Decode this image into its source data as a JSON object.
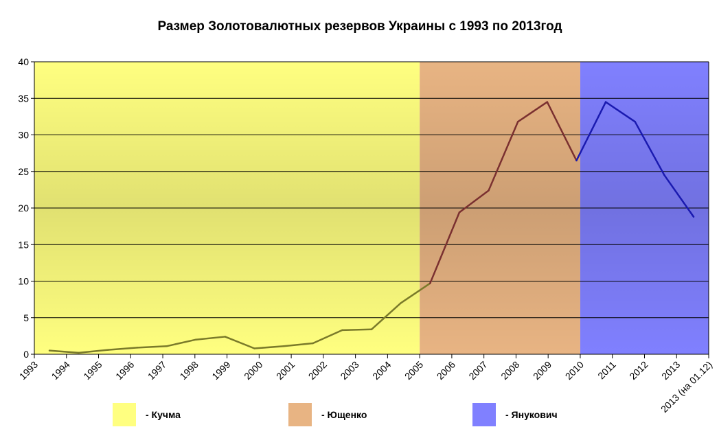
{
  "chart_data": {
    "type": "line",
    "title": "Размер Золотовалютных резервов Украины с 1993 по 2013год",
    "xlabel": "",
    "ylabel": "",
    "ylim": [
      0,
      40
    ],
    "yticks": [
      0,
      5,
      10,
      15,
      20,
      25,
      30,
      35,
      40
    ],
    "grid": true,
    "x_tick_labels": [
      "1993",
      "1994",
      "1995",
      "1996",
      "1997",
      "1998",
      "1999",
      "2000",
      "2001",
      "2002",
      "2003",
      "2004",
      "2005",
      "2006",
      "2007",
      "2008",
      "2009",
      "2010",
      "2011",
      "2012",
      "2013",
      "2013 (на 01.12)"
    ],
    "series": [
      {
        "name": "",
        "x": [
          "1993",
          "1994",
          "1995",
          "1996",
          "1997",
          "1998",
          "1999",
          "2000",
          "2001",
          "2002",
          "2003",
          "2004",
          "2005",
          "2006",
          "2007",
          "2008",
          "2009",
          "2010",
          "2011",
          "2012",
          "2013",
          "2013 (на 01.12)"
        ],
        "values": [
          0.5,
          0.2,
          0.6,
          0.9,
          1.1,
          2.0,
          2.4,
          0.8,
          1.1,
          1.5,
          3.3,
          3.4,
          7.0,
          9.7,
          19.4,
          22.4,
          31.8,
          34.5,
          26.5,
          34.5,
          31.8,
          24.5
        ]
      },
      {
        "name": "",
        "x": [
          "2013 (на 01.12)"
        ],
        "values": [
          18.8
        ]
      }
    ],
    "periods": [
      {
        "label": "- Кучма",
        "from": "1993",
        "to": "2005",
        "color": "#ffff80",
        "line_color": "#7a7a2a"
      },
      {
        "label": "- Ющенко",
        "from": "2005",
        "to": "2010",
        "color": "#e8b483",
        "line_color": "#7a3030"
      },
      {
        "label": "- Янукович",
        "from": "2010",
        "to": "end",
        "color": "#8080ff",
        "line_color": "#1a1ab0"
      }
    ],
    "legend_position": "bottom"
  },
  "legend": [
    {
      "label": "- Кучма",
      "color": "#ffff80"
    },
    {
      "label": "- Ющенко",
      "color": "#e8b483"
    },
    {
      "label": "- Янукович",
      "color": "#8080ff"
    }
  ]
}
